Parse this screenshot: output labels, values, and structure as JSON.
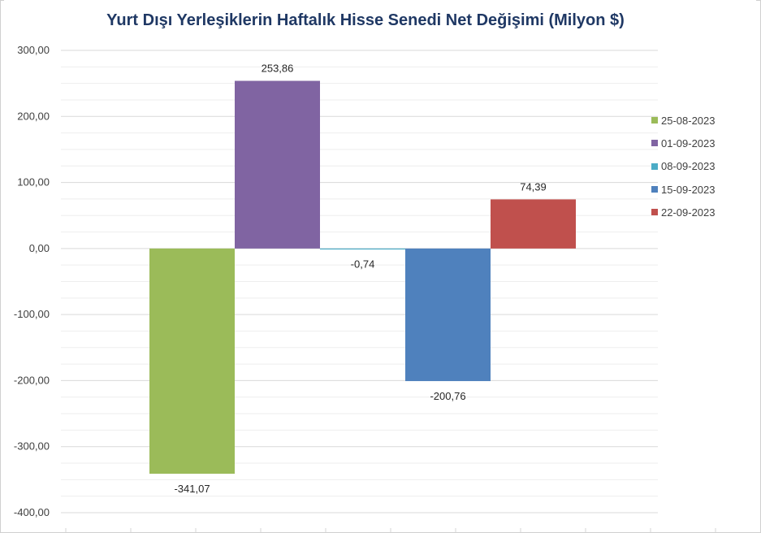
{
  "chart_data": {
    "type": "bar",
    "title": "Yurt Dışı Yerleşiklerin Haftalık Hisse Senedi Net Değişimi (Milyon $)",
    "xlabel": "",
    "ylabel": "",
    "ylim": [
      -400,
      300
    ],
    "ytick_step": 100,
    "ytick_labels": [
      "300,00",
      "200,00",
      "100,00",
      "0,00",
      "-100,00",
      "-200,00",
      "-300,00",
      "-400,00"
    ],
    "grid": true,
    "legend_position": "right",
    "series": [
      {
        "name": "25-08-2023",
        "value": -341.07,
        "label": "-341,07",
        "color": "#9bbb59"
      },
      {
        "name": "01-09-2023",
        "value": 253.86,
        "label": "253,86",
        "color": "#8064a2"
      },
      {
        "name": "08-09-2023",
        "value": -0.74,
        "label": "-0,74",
        "color": "#4bacc6"
      },
      {
        "name": "15-09-2023",
        "value": -200.76,
        "label": "-200,76",
        "color": "#4f81bd"
      },
      {
        "name": "22-09-2023",
        "value": 74.39,
        "label": "74,39",
        "color": "#c0504d"
      }
    ]
  }
}
